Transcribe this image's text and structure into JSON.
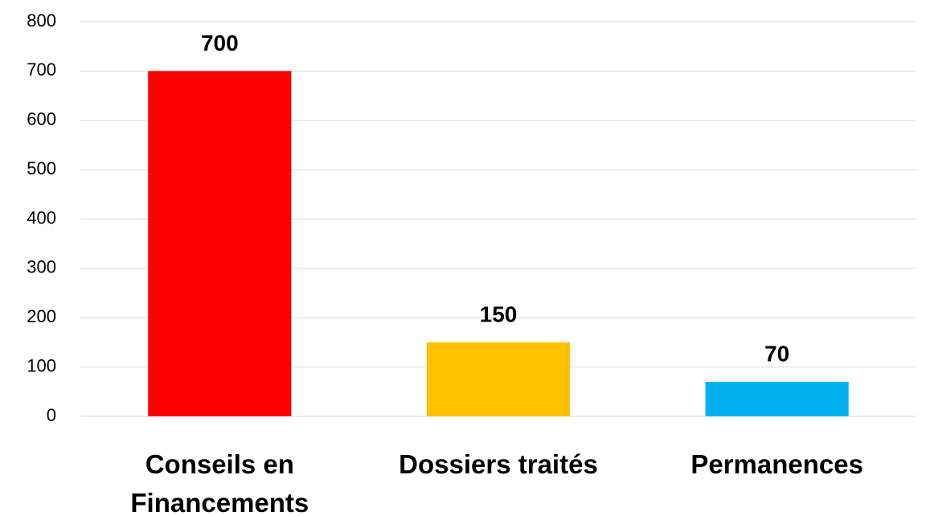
{
  "chart_data": {
    "type": "bar",
    "categories": [
      "Conseils en Financements",
      "Dossiers traités",
      "Permanences"
    ],
    "values": [
      700,
      150,
      70
    ],
    "colors": [
      "#ff0000",
      "#ffc000",
      "#00b0f0"
    ],
    "ylim": [
      0,
      800
    ],
    "yticks": [
      0,
      100,
      200,
      300,
      400,
      500,
      600,
      700,
      800
    ],
    "grid": true
  }
}
